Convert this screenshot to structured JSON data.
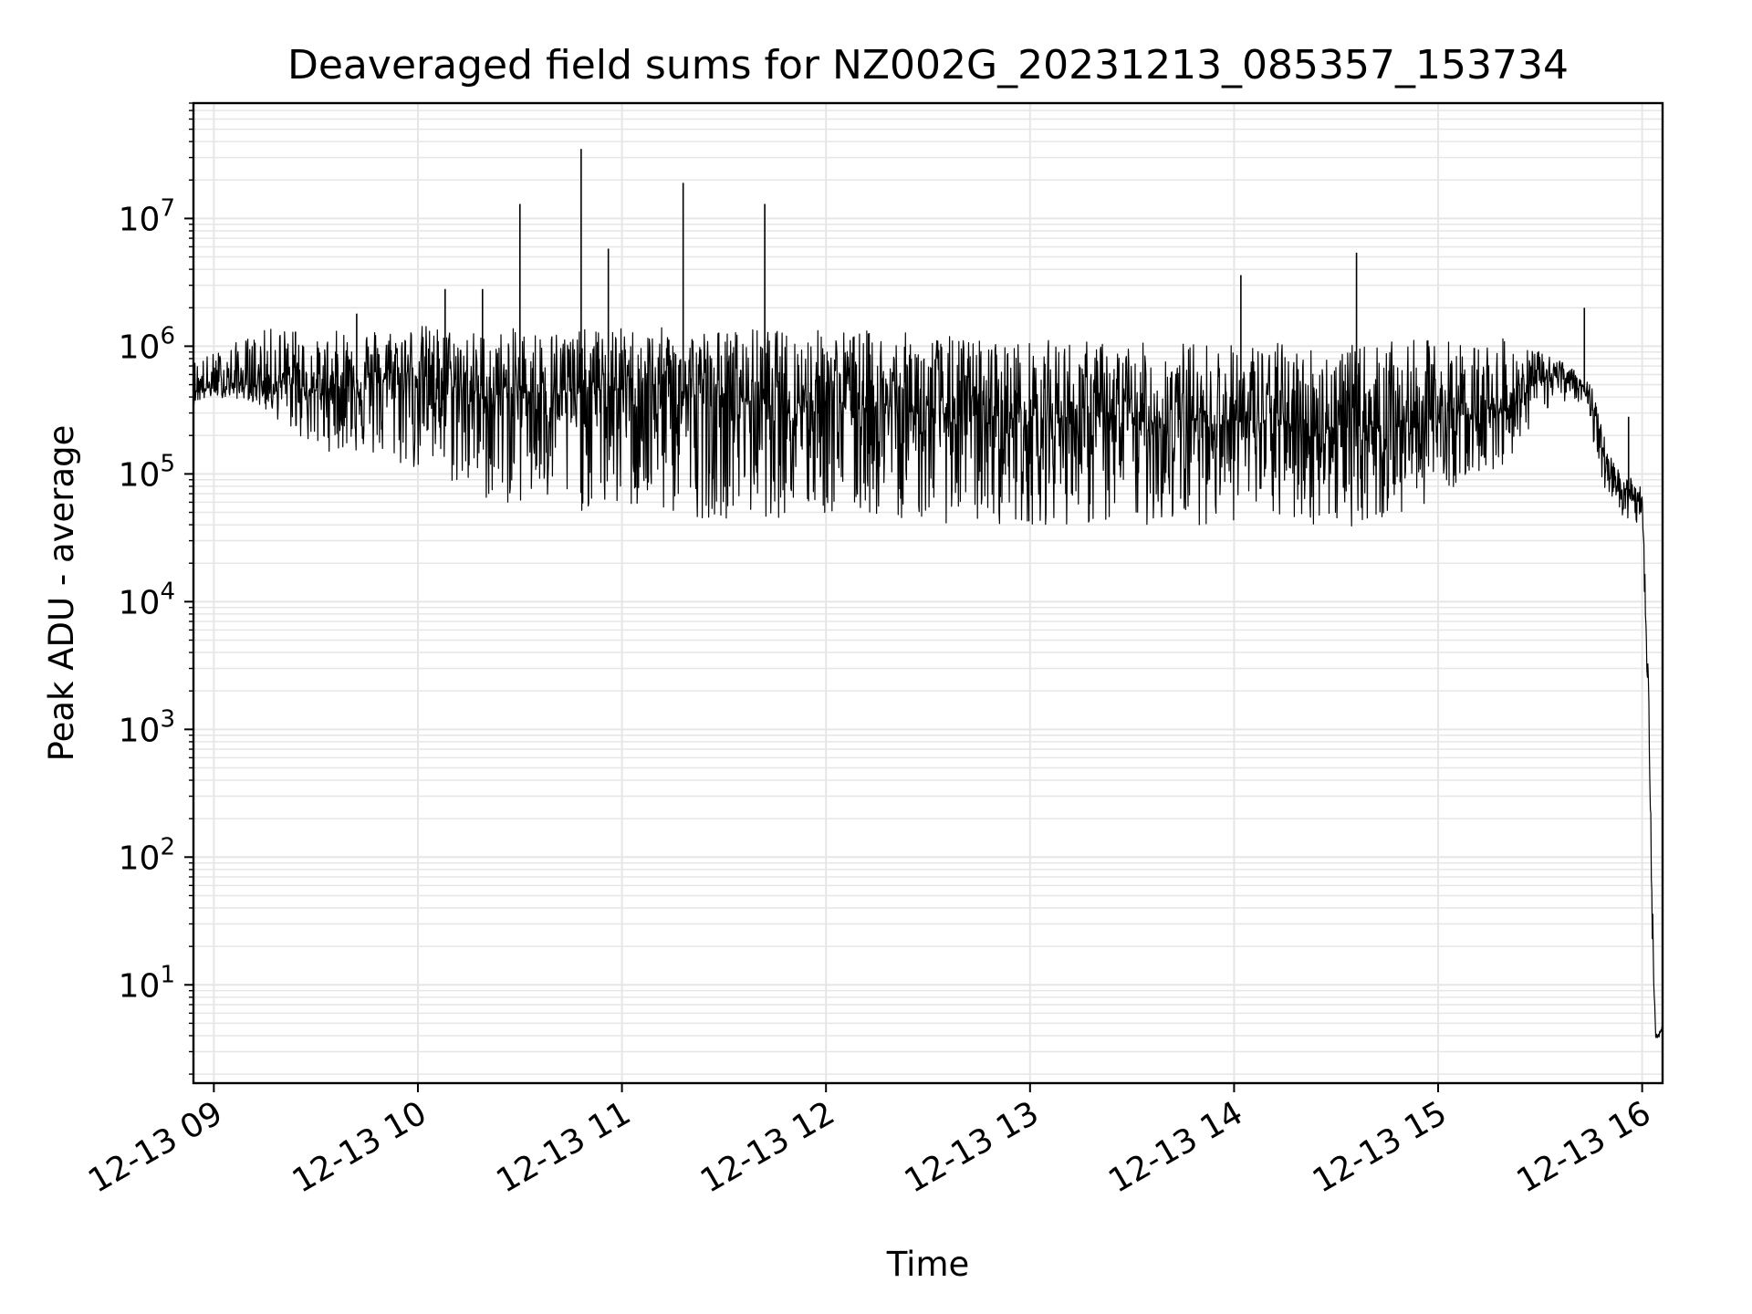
{
  "chart_data": {
    "type": "line",
    "title": "Deaveraged field sums for NZ002G_20231213_085357_153734",
    "xlabel": "Time",
    "ylabel": "Peak ADU - average",
    "x_axis_kind": "datetime",
    "xlim": [
      "2023-12-13T08:54:00",
      "2023-12-13T16:06:00"
    ],
    "x_tick_labels": [
      "12-13 09",
      "12-13 10",
      "12-13 11",
      "12-13 12",
      "12-13 13",
      "12-13 14",
      "12-13 15",
      "12-13 16"
    ],
    "y_scale": "log",
    "ylim": [
      1.7,
      80000000
    ],
    "y_ticks": [
      {
        "value": 10,
        "label_base": "10",
        "label_exp": "1"
      },
      {
        "value": 100,
        "label_base": "10",
        "label_exp": "2"
      },
      {
        "value": 1000,
        "label_base": "10",
        "label_exp": "3"
      },
      {
        "value": 10000,
        "label_base": "10",
        "label_exp": "4"
      },
      {
        "value": 100000,
        "label_base": "10",
        "label_exp": "5"
      },
      {
        "value": 1000000,
        "label_base": "10",
        "label_exp": "6"
      },
      {
        "value": 10000000,
        "label_base": "10",
        "label_exp": "7"
      }
    ],
    "grid": true,
    "line_color": "#000000",
    "grid_color": "#e6e6e6",
    "series": [
      {
        "x": [
          "08:54",
          "09:00",
          "09:10",
          "09:20",
          "09:30",
          "09:40",
          "09:50",
          "10:00",
          "10:10",
          "10:20",
          "10:30",
          "10:40",
          "10:50",
          "11:00",
          "11:10",
          "11:20",
          "11:30",
          "11:40",
          "11:50",
          "12:00",
          "12:10",
          "12:20",
          "12:30",
          "12:40",
          "12:50",
          "13:00",
          "13:10",
          "13:20",
          "13:30",
          "13:40",
          "13:50",
          "14:00",
          "14:10",
          "14:20",
          "14:30",
          "14:40",
          "14:50",
          "15:00",
          "15:10",
          "15:20",
          "15:30",
          "15:40",
          "15:45",
          "15:50",
          "15:55",
          "16:00",
          "16:02",
          "16:03",
          "16:04",
          "16:06"
        ],
        "y": [
          450000,
          480000,
          500000,
          520000,
          450000,
          500000,
          550000,
          600000,
          500000,
          400000,
          450000,
          420000,
          450000,
          460000,
          430000,
          420000,
          400000,
          390000,
          380000,
          400000,
          350000,
          330000,
          300000,
          290000,
          280000,
          270000,
          280000,
          270000,
          260000,
          250000,
          270000,
          260000,
          250000,
          240000,
          230000,
          240000,
          250000,
          280000,
          300000,
          330000,
          550000,
          600000,
          350000,
          110000,
          75000,
          60000,
          1000,
          30,
          3.8,
          4.5
        ],
        "envelope_high": [
          800000,
          900000,
          1200000,
          1500000,
          1100000,
          1500000,
          1400000,
          1500000,
          1400000,
          1300000,
          1400000,
          1400000,
          1350000,
          1400000,
          1400000,
          1400000,
          1350000,
          1400000,
          1300000,
          1400000,
          1350000,
          1300000,
          1250000,
          1200000,
          1150000,
          1100000,
          1150000,
          1100000,
          1050000,
          1100000,
          1100000,
          1050000,
          1100000,
          1050000,
          1000000,
          1050000,
          1100000,
          1150000,
          1100000,
          1150000,
          900000,
          700000,
          500000,
          150000,
          100000,
          80000,
          2000,
          50,
          4,
          5
        ],
        "envelope_low": [
          350000,
          400000,
          380000,
          250000,
          150000,
          150000,
          120000,
          100000,
          80000,
          60000,
          55000,
          50000,
          50000,
          50000,
          45000,
          45000,
          45000,
          45000,
          45000,
          45000,
          45000,
          45000,
          42000,
          40000,
          40000,
          40000,
          40000,
          38000,
          38000,
          40000,
          40000,
          42000,
          42000,
          40000,
          38000,
          40000,
          45000,
          70000,
          90000,
          120000,
          300000,
          400000,
          200000,
          60000,
          45000,
          30000,
          800,
          20,
          3.8,
          4
        ]
      }
    ],
    "spikes": [
      {
        "x": "09:24",
        "y": 1300000
      },
      {
        "x": "09:42",
        "y": 1800000
      },
      {
        "x": "10:08",
        "y": 2800000
      },
      {
        "x": "10:19",
        "y": 2800000
      },
      {
        "x": "10:30",
        "y": 13000000
      },
      {
        "x": "10:48",
        "y": 35000000
      },
      {
        "x": "10:56",
        "y": 5800000
      },
      {
        "x": "11:18",
        "y": 19000000
      },
      {
        "x": "11:42",
        "y": 13000000
      },
      {
        "x": "14:02",
        "y": 3600000
      },
      {
        "x": "14:36",
        "y": 5400000
      },
      {
        "x": "15:43",
        "y": 2000000
      },
      {
        "x": "15:56",
        "y": 280000
      }
    ]
  }
}
